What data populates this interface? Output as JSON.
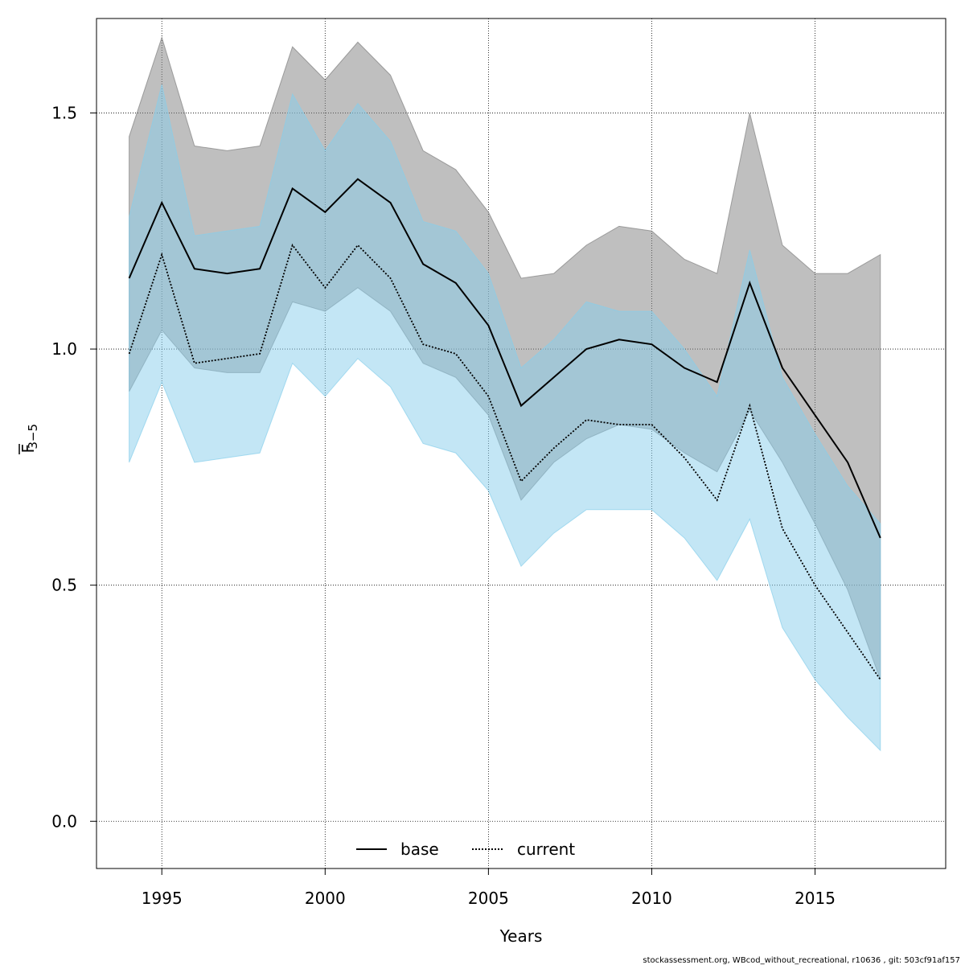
{
  "chart_data": {
    "type": "line",
    "xlabel": "Years",
    "ylabel_main": "F",
    "ylabel_sub": "3−5",
    "xlim": [
      1993,
      2019
    ],
    "ylim": [
      -0.1,
      1.7
    ],
    "x_ticks": [
      1995,
      2000,
      2005,
      2010,
      2015
    ],
    "x_tick_labels": [
      "1995",
      "2000",
      "2005",
      "2010",
      "2015"
    ],
    "y_ticks": [
      0.0,
      0.5,
      1.0,
      1.5
    ],
    "y_tick_labels": [
      "0.0",
      "0.5",
      "1.0",
      "1.5"
    ],
    "grid": true,
    "legend_position": "bottom",
    "x": [
      1994,
      1995,
      1996,
      1997,
      1998,
      1999,
      2000,
      2001,
      2002,
      2003,
      2004,
      2005,
      2006,
      2007,
      2008,
      2009,
      2010,
      2011,
      2012,
      2013,
      2014,
      2015,
      2016,
      2017
    ],
    "series": [
      {
        "name": "base",
        "line_style": "solid",
        "color": "#000000",
        "band_color": "#808080",
        "values": [
          1.15,
          1.31,
          1.17,
          1.16,
          1.17,
          1.34,
          1.29,
          1.36,
          1.31,
          1.18,
          1.14,
          1.05,
          0.88,
          0.94,
          1.0,
          1.02,
          1.01,
          0.96,
          0.93,
          1.14,
          0.96,
          0.86,
          0.76,
          0.6
        ],
        "lower": [
          0.91,
          1.04,
          0.96,
          0.95,
          0.95,
          1.1,
          1.08,
          1.13,
          1.08,
          0.97,
          0.94,
          0.86,
          0.68,
          0.76,
          0.81,
          0.84,
          0.83,
          0.78,
          0.74,
          0.87,
          0.76,
          0.63,
          0.49,
          0.3
        ],
        "upper": [
          1.45,
          1.66,
          1.43,
          1.42,
          1.43,
          1.64,
          1.57,
          1.65,
          1.58,
          1.42,
          1.38,
          1.29,
          1.15,
          1.16,
          1.22,
          1.26,
          1.25,
          1.19,
          1.16,
          1.5,
          1.22,
          1.16,
          1.16,
          1.2
        ]
      },
      {
        "name": "current",
        "line_style": "dotted",
        "color": "#000000",
        "band_color": "#87ceeb",
        "values": [
          0.99,
          1.2,
          0.97,
          0.98,
          0.99,
          1.22,
          1.13,
          1.22,
          1.15,
          1.01,
          0.99,
          0.9,
          0.72,
          0.79,
          0.85,
          0.84,
          0.84,
          0.77,
          0.68,
          0.88,
          0.62,
          0.5,
          0.4,
          0.3
        ],
        "lower": [
          0.76,
          0.93,
          0.76,
          0.77,
          0.78,
          0.97,
          0.9,
          0.98,
          0.92,
          0.8,
          0.78,
          0.7,
          0.54,
          0.61,
          0.66,
          0.66,
          0.66,
          0.6,
          0.51,
          0.64,
          0.41,
          0.3,
          0.22,
          0.15
        ],
        "upper": [
          1.28,
          1.56,
          1.24,
          1.25,
          1.26,
          1.54,
          1.42,
          1.52,
          1.44,
          1.27,
          1.25,
          1.16,
          0.96,
          1.02,
          1.1,
          1.08,
          1.08,
          1.0,
          0.9,
          1.21,
          0.94,
          0.82,
          0.71,
          0.63
        ]
      }
    ]
  },
  "footer": "stockassessment.org, WBcod_without_recreational, r10636 , git: 503cf91af157"
}
